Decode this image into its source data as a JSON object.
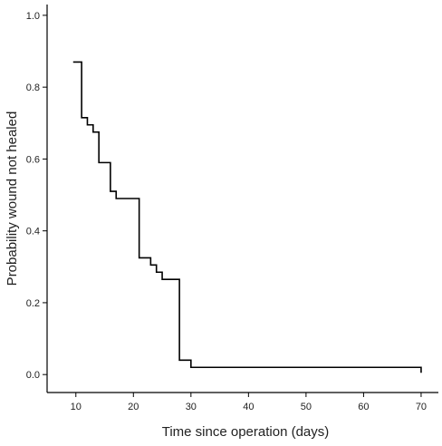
{
  "chart_data": {
    "type": "line",
    "title": "",
    "xlabel": "Time since operation (days)",
    "ylabel": "Probability wound not healed",
    "xlim": [
      5,
      73
    ],
    "ylim": [
      -0.05,
      1.03
    ],
    "x_ticks": [
      10,
      20,
      30,
      40,
      50,
      60,
      70
    ],
    "x_tick_labels": [
      "10",
      "20",
      "30",
      "40",
      "50",
      "60",
      "70"
    ],
    "y_ticks": [
      0.0,
      0.2,
      0.4,
      0.6,
      0.8,
      1.0
    ],
    "y_tick_labels": [
      "0.0",
      "0.2",
      "0.4",
      "0.6",
      "0.8",
      "1.0"
    ],
    "grid": false,
    "step": true,
    "series": [
      {
        "x": [
          10,
          11,
          12,
          13,
          14,
          16,
          17,
          21,
          23,
          24,
          25,
          28,
          30,
          70
        ],
        "y": [
          0.87,
          0.715,
          0.695,
          0.675,
          0.59,
          0.51,
          0.49,
          0.325,
          0.305,
          0.285,
          0.265,
          0.04,
          0.02,
          0.02
        ],
        "end_drop_to": 0.005
      }
    ]
  }
}
